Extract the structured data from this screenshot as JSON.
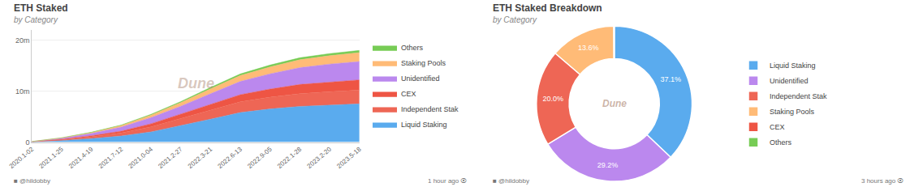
{
  "chart_data": [
    {
      "type": "area",
      "stacked": true,
      "title": "ETH Staked",
      "subtitle": "by Category",
      "categories": [
        "2020.1-02",
        "2021.1-25",
        "2021.4-19",
        "2021.7-12",
        "2021.0-04",
        "2021.2-27",
        "2022.3-21",
        "2022.6-13",
        "2022.9-05",
        "2022.1-28",
        "2023.2-20",
        "2023.5-18"
      ],
      "series": [
        {
          "name": "Liquid Staking",
          "color": "#5aabee",
          "values": [
            0.05,
            0.3,
            0.7,
            1.2,
            2.0,
            3.2,
            4.5,
            5.8,
            6.5,
            7.0,
            7.3,
            7.5
          ]
        },
        {
          "name": "Independent Stak",
          "color": "#ee6655",
          "values": [
            0.02,
            0.15,
            0.35,
            0.6,
            1.0,
            1.4,
            1.8,
            2.1,
            2.3,
            2.5,
            2.6,
            2.7
          ]
        },
        {
          "name": "CEX",
          "color": "#ee5544",
          "values": [
            0.01,
            0.1,
            0.2,
            0.35,
            0.6,
            0.85,
            1.1,
            1.4,
            1.6,
            1.8,
            1.9,
            2.0
          ]
        },
        {
          "name": "Unidentified",
          "color": "#bb88ee",
          "values": [
            0.02,
            0.2,
            0.45,
            0.8,
            1.2,
            1.6,
            2.1,
            2.6,
            3.0,
            3.3,
            3.5,
            3.6
          ]
        },
        {
          "name": "Staking Pools",
          "color": "#ffbb77",
          "values": [
            0.01,
            0.08,
            0.18,
            0.3,
            0.5,
            0.7,
            0.95,
            1.15,
            1.35,
            1.55,
            1.65,
            1.75
          ]
        },
        {
          "name": "Others",
          "color": "#77cc55",
          "values": [
            0.005,
            0.03,
            0.06,
            0.1,
            0.15,
            0.2,
            0.27,
            0.32,
            0.36,
            0.39,
            0.41,
            0.43
          ]
        }
      ],
      "ylim": [
        0,
        22
      ],
      "yticks": [
        0,
        {
          "value": 10,
          "label": "10m"
        },
        {
          "value": 20,
          "label": "20m"
        }
      ],
      "grid": true,
      "legend": "right",
      "annotations": [
        "Dune",
        "■ @hildobby",
        "1 hour ago ⦿"
      ]
    },
    {
      "type": "pie",
      "title": "ETH Staked Breakdown",
      "subtitle": "by Category",
      "categories": [
        "Liquid Staking",
        "Unidentified",
        "Independent Stak",
        "Staking Pools",
        "CEX",
        "Others"
      ],
      "values": [
        37.1,
        29.2,
        20.0,
        13.6,
        0.1,
        0.0
      ],
      "colors": [
        "#5aabee",
        "#bb88ee",
        "#ee6655",
        "#ffbb77",
        "#ee5544",
        "#77cc55"
      ],
      "value_labels": [
        "37.1%",
        "29.2%",
        "20.0%",
        "13.6%",
        null,
        null
      ],
      "data_labels": true,
      "legend": "right",
      "annotations": [
        "Dune",
        "■ @hildobby",
        "3 hours ago ⦿"
      ]
    }
  ]
}
